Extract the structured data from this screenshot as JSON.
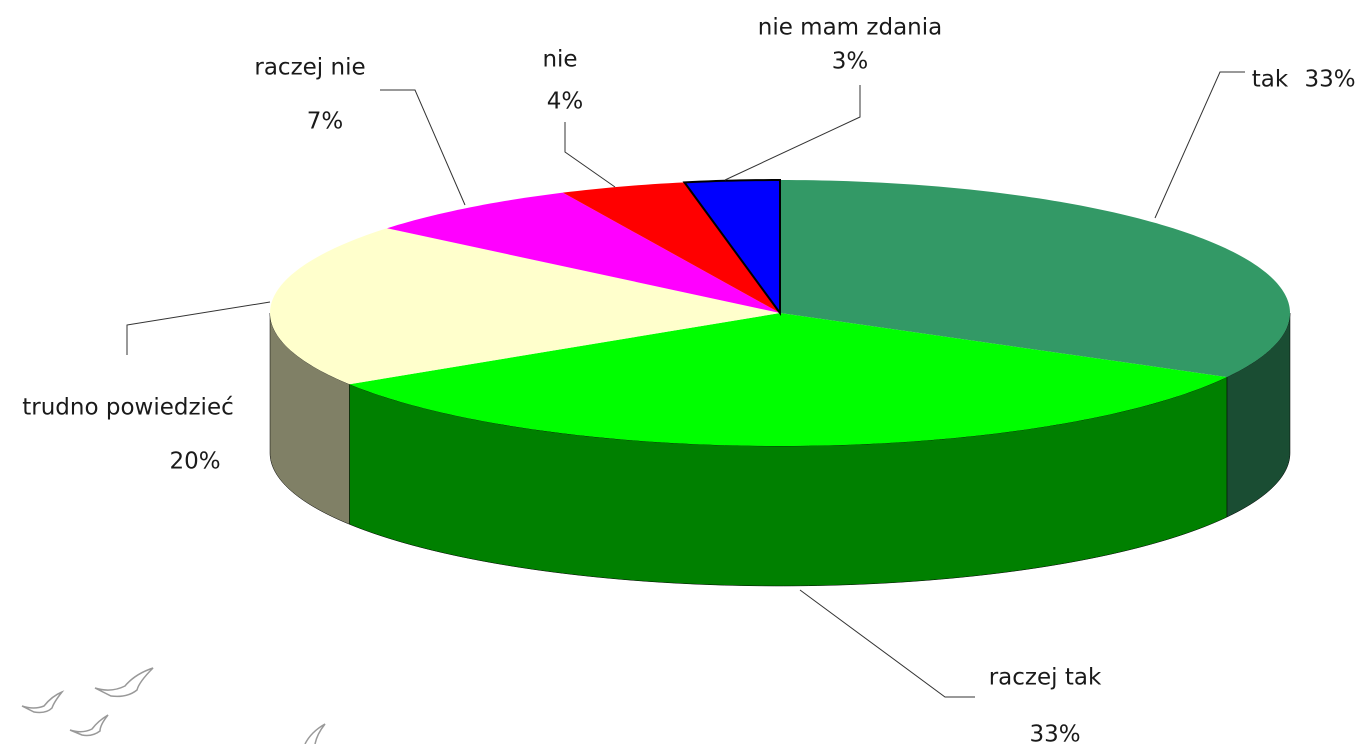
{
  "chart_data": {
    "type": "pie3d",
    "categories": [
      "tak",
      "raczej tak",
      "trudno powiedzieć",
      "raczej nie",
      "nie",
      "nie mam zdania"
    ],
    "values": [
      33,
      33,
      20,
      7,
      4,
      3
    ],
    "value_labels": [
      "33%",
      "33%",
      "20%",
      "7%",
      "4%",
      "3%"
    ],
    "colors": [
      "#339966",
      "#00ff00",
      "#ffffcc",
      "#ff00ff",
      "#ff0000",
      "#0000ff"
    ]
  }
}
